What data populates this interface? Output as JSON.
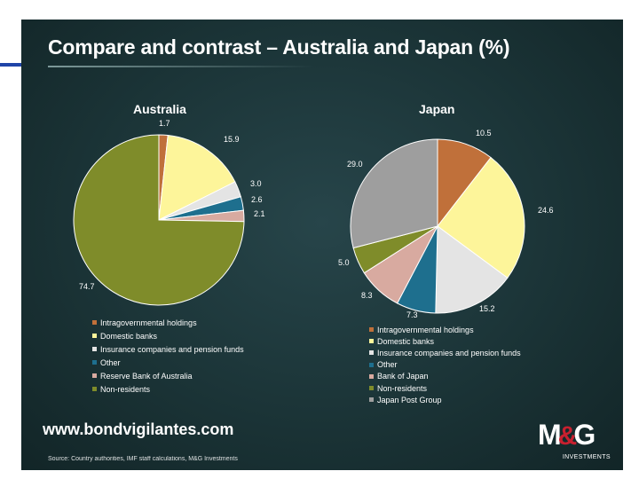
{
  "page": {
    "title": "Compare and contrast – Australia and Japan (%)",
    "website": "www.bondvigilantes.com",
    "source": "Source: Country authorities, IMF staff calculations, M&G Investments",
    "logo": {
      "text": "M&G",
      "subtext": "INVESTMENTS",
      "accent_color": "#c8202f"
    }
  },
  "chart_data": [
    {
      "type": "pie",
      "title": "Australia",
      "slices": [
        {
          "label": "Intragovernmental holdings",
          "value": 1.7,
          "display": "1.7",
          "color": "#c0703a"
        },
        {
          "label": "Domestic banks",
          "value": 15.9,
          "display": "15.9",
          "color": "#fdf59a"
        },
        {
          "label": "Insurance companies and pension funds",
          "value": 3.0,
          "display": "3.0",
          "color": "#e4e4e4"
        },
        {
          "label": "Other",
          "value": 2.6,
          "display": "2.6",
          "color": "#1e6f8e"
        },
        {
          "label": "Reserve Bank of Australia",
          "value": 2.1,
          "display": "2.1",
          "color": "#d8aaa0"
        },
        {
          "label": "Non-residents",
          "value": 74.7,
          "display": "74.7",
          "color": "#7f8c2a"
        }
      ],
      "legend_position": "bottom"
    },
    {
      "type": "pie",
      "title": "Japan",
      "slices": [
        {
          "label": "Intragovernmental holdings",
          "value": 10.5,
          "display": "10.5",
          "color": "#c0703a"
        },
        {
          "label": "Domestic banks",
          "value": 24.6,
          "display": "24.6",
          "color": "#fdf59a"
        },
        {
          "label": "Insurance companies and pension funds",
          "value": 15.2,
          "display": "15.2",
          "color": "#e4e4e4"
        },
        {
          "label": "Other",
          "value": 7.3,
          "display": "7.3",
          "color": "#1e6f8e"
        },
        {
          "label": "Bank of Japan",
          "value": 8.3,
          "display": "8.3",
          "color": "#d8aaa0"
        },
        {
          "label": "Non-residents",
          "value": 5.0,
          "display": "5.0",
          "color": "#7f8c2a"
        },
        {
          "label": "Japan Post Group",
          "value": 29.0,
          "display": "29.0",
          "color": "#9e9e9e"
        }
      ],
      "legend_position": "bottom"
    }
  ]
}
